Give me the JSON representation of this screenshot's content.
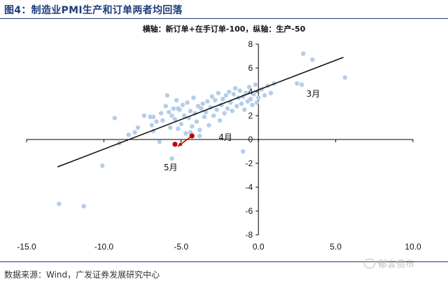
{
  "title": "图4：制造业PMI生产和订单两者均回落",
  "subtitle": "横轴：新订单+在手订单-100，纵轴：生产-50",
  "source": "数据来源：Wind，广发证券发展研究中心",
  "watermark": "郁言债市",
  "chart_data": {
    "type": "scatter",
    "xlim": [
      -15,
      10
    ],
    "ylim": [
      -8,
      8
    ],
    "xticks": [
      "-15.0",
      "-10.0",
      "-5.0",
      "0.0",
      "5.0",
      "10.0"
    ],
    "yticks": [
      "8",
      "6",
      "4",
      "2",
      "0",
      "-2",
      "-4",
      "-6",
      "-8"
    ],
    "point_color": "#b4cdea",
    "highlight_color": "#c00000",
    "points": [
      [
        -12.9,
        -5.4
      ],
      [
        -11.3,
        -5.6
      ],
      [
        -10.1,
        -2.2
      ],
      [
        -9.3,
        1.8
      ],
      [
        -9.0,
        -0.3
      ],
      [
        -8.4,
        0.4
      ],
      [
        -8.0,
        0.6
      ],
      [
        -7.8,
        1.0
      ],
      [
        -7.4,
        2.0
      ],
      [
        -7.0,
        1.9
      ],
      [
        -6.9,
        1.2
      ],
      [
        -6.8,
        0.7
      ],
      [
        -6.6,
        1.5
      ],
      [
        -6.4,
        -0.2
      ],
      [
        -6.3,
        2.2
      ],
      [
        -6.2,
        1.6
      ],
      [
        -6.0,
        2.8
      ],
      [
        -5.9,
        3.7
      ],
      [
        -5.8,
        2.3
      ],
      [
        -5.7,
        1.0
      ],
      [
        -5.6,
        2.0
      ],
      [
        -5.5,
        2.6
      ],
      [
        -5.4,
        1.7
      ],
      [
        -5.3,
        3.3
      ],
      [
        -5.2,
        0.9
      ],
      [
        -5.1,
        2.5
      ],
      [
        -5.0,
        1.3
      ],
      [
        -4.9,
        2.9
      ],
      [
        -4.8,
        2.0
      ],
      [
        -4.7,
        0.5
      ],
      [
        -4.6,
        3.1
      ],
      [
        -4.5,
        1.8
      ],
      [
        -4.4,
        2.4
      ],
      [
        -4.3,
        1.1
      ],
      [
        -4.2,
        3.5
      ],
      [
        -4.1,
        2.2
      ],
      [
        -4.0,
        1.5
      ],
      [
        -3.9,
        2.8
      ],
      [
        -3.8,
        0.8
      ],
      [
        -3.7,
        2.6
      ],
      [
        -3.6,
        3.0
      ],
      [
        -3.5,
        1.9
      ],
      [
        -3.4,
        2.3
      ],
      [
        -3.3,
        3.2
      ],
      [
        -3.2,
        1.2
      ],
      [
        -3.1,
        2.7
      ],
      [
        -3.0,
        3.6
      ],
      [
        -2.9,
        2.0
      ],
      [
        -2.8,
        3.3
      ],
      [
        -2.7,
        2.5
      ],
      [
        -2.6,
        3.9
      ],
      [
        -2.5,
        1.6
      ],
      [
        -2.4,
        2.9
      ],
      [
        -2.3,
        3.4
      ],
      [
        -2.2,
        2.2
      ],
      [
        -2.1,
        3.7
      ],
      [
        -2.0,
        2.6
      ],
      [
        -1.9,
        4.0
      ],
      [
        -1.8,
        3.1
      ],
      [
        -1.7,
        2.4
      ],
      [
        -1.6,
        3.8
      ],
      [
        -1.5,
        4.3
      ],
      [
        -1.4,
        2.8
      ],
      [
        -1.3,
        3.5
      ],
      [
        -1.2,
        4.1
      ],
      [
        -1.1,
        3.0
      ],
      [
        -1.0,
        3.6
      ],
      [
        -0.9,
        2.5
      ],
      [
        -0.8,
        3.9
      ],
      [
        -0.7,
        3.2
      ],
      [
        -0.6,
        4.4
      ],
      [
        -0.5,
        3.4
      ],
      [
        -0.4,
        2.9
      ],
      [
        -0.3,
        3.8
      ],
      [
        -0.2,
        4.6
      ],
      [
        -0.1,
        3.1
      ],
      [
        0.0,
        3.5
      ],
      [
        0.2,
        4.2
      ],
      [
        0.4,
        3.7
      ],
      [
        0.6,
        4.5
      ],
      [
        0.8,
        3.9
      ],
      [
        1.0,
        4.7
      ],
      [
        -5.6,
        -1.6
      ],
      [
        -1.0,
        -1.0
      ],
      [
        -5.2,
        2.6
      ],
      [
        -6.8,
        1.9
      ],
      [
        -3.8,
        0.3
      ],
      [
        -4.4,
        0.6
      ],
      [
        2.5,
        4.7
      ],
      [
        2.8,
        4.6
      ],
      [
        2.9,
        7.2
      ],
      [
        3.5,
        6.7
      ],
      [
        5.6,
        5.2
      ]
    ],
    "highlights": [
      {
        "x": -4.3,
        "y": 0.3,
        "label": "4月"
      },
      {
        "x": -5.4,
        "y": -0.4,
        "label": "5月"
      }
    ],
    "annotations": [
      {
        "text": "3月",
        "x": 3.1,
        "y": 3.6
      }
    ],
    "trendline": [
      [
        -13.0,
        -2.3
      ],
      [
        5.5,
        6.9
      ]
    ]
  }
}
